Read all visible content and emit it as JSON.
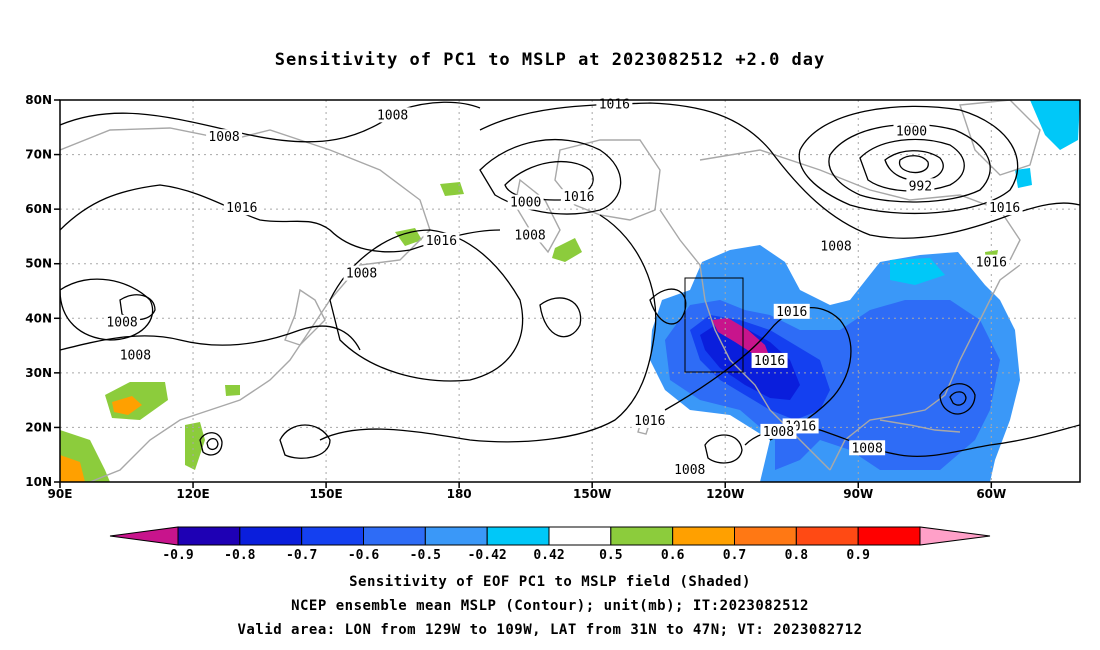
{
  "title": "Sensitivity of PC1 to MSLP at 2023082512 +2.0 day",
  "captions": [
    "Sensitivity of EOF PC1 to MSLP field (Shaded)",
    "NCEP ensemble mean MSLP (Contour); unit(mb); IT:2023082512",
    "Valid area: LON from 129W to 109W, LAT from 31N to 47N; VT: 2023082712"
  ],
  "axes": {
    "lat_labels": [
      "80N",
      "70N",
      "60N",
      "50N",
      "40N",
      "30N",
      "20N",
      "10N"
    ],
    "lat_values": [
      80,
      70,
      60,
      50,
      40,
      30,
      20,
      10
    ],
    "lon_labels": [
      "90E",
      "120E",
      "150E",
      "180",
      "150W",
      "120W",
      "90W",
      "60W"
    ],
    "lon_values": [
      90,
      120,
      150,
      180,
      210,
      240,
      270,
      300
    ],
    "lon_range": [
      90,
      320
    ],
    "lat_range": [
      10,
      80
    ],
    "grid": "dotted"
  },
  "contour_labels": [
    {
      "text": "1008",
      "lon": 127,
      "lat": 73
    },
    {
      "text": "1016",
      "lon": 131,
      "lat": 60
    },
    {
      "text": "1008",
      "lon": 165,
      "lat": 77
    },
    {
      "text": "1016",
      "lon": 215,
      "lat": 79
    },
    {
      "text": "1008",
      "lon": 158,
      "lat": 48
    },
    {
      "text": "1016",
      "lon": 176,
      "lat": 54
    },
    {
      "text": "1000",
      "lon": 195,
      "lat": 61
    },
    {
      "text": "1008",
      "lon": 196,
      "lat": 55
    },
    {
      "text": "1016",
      "lon": 207,
      "lat": 62
    },
    {
      "text": "1000",
      "lon": 282,
      "lat": 74
    },
    {
      "text": "992",
      "lon": 284,
      "lat": 64
    },
    {
      "text": "1008",
      "lon": 265,
      "lat": 53
    },
    {
      "text": "1016",
      "lon": 303,
      "lat": 60
    },
    {
      "text": "1016",
      "lon": 300,
      "lat": 50
    },
    {
      "text": "1016",
      "lon": 255,
      "lat": 41
    },
    {
      "text": "1016",
      "lon": 250,
      "lat": 32
    },
    {
      "text": "1008",
      "lon": 104,
      "lat": 39
    },
    {
      "text": "1008",
      "lon": 107,
      "lat": 33
    },
    {
      "text": "1016",
      "lon": 223,
      "lat": 21
    },
    {
      "text": "1016",
      "lon": 257,
      "lat": 20
    },
    {
      "text": "1008",
      "lon": 252,
      "lat": 19
    },
    {
      "text": "1008",
      "lon": 272,
      "lat": 16
    },
    {
      "text": "1008",
      "lon": 232,
      "lat": 12
    }
  ],
  "colorbar": {
    "labels": [
      "-0.9",
      "-0.8",
      "-0.7",
      "-0.6",
      "-0.5",
      "-0.42",
      "0.42",
      "0.5",
      "0.6",
      "0.7",
      "0.8",
      "0.9"
    ],
    "colors": [
      "#1e00b4",
      "#0a1edc",
      "#1440f0",
      "#2e6cf6",
      "#3a98f8",
      "#00c8f8",
      "#ffffff",
      "#8ccc3c",
      "#ffa000",
      "#ff7814",
      "#ff4a14",
      "#ff0000"
    ],
    "low_arrow_color": "#c8148c",
    "high_arrow_color": "#ffa0c8"
  },
  "colors": {
    "land": "#a8a8a8",
    "contour": "#000000",
    "frame": "#000000"
  }
}
